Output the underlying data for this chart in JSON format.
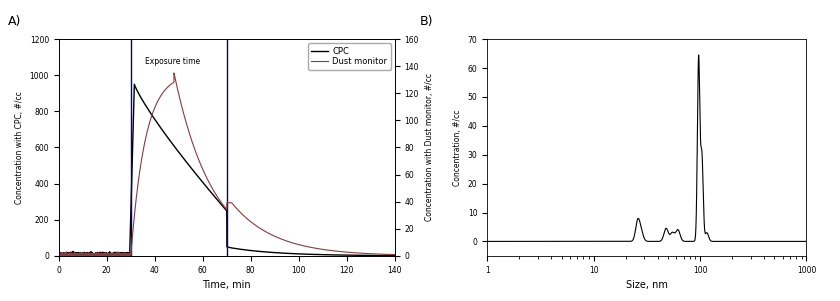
{
  "panel_A": {
    "title": "A)",
    "xlabel": "Time, min",
    "ylabel_left": "Concentration with CPC, #/cc",
    "ylabel_right": "Concentration with Dust monitor, #/cc",
    "xlim": [
      0,
      140
    ],
    "ylim_left": [
      0,
      1200
    ],
    "ylim_right": [
      0,
      160
    ],
    "yticks_left": [
      0,
      200,
      400,
      600,
      800,
      1000,
      1200
    ],
    "yticks_right": [
      0,
      20,
      40,
      60,
      80,
      100,
      120,
      140,
      160
    ],
    "xticks": [
      0,
      20,
      40,
      60,
      80,
      100,
      120,
      140
    ],
    "exposure_lines": [
      30,
      70
    ],
    "exposure_label": "Exposure time",
    "cpc_color": "#000000",
    "dust_color": "#8B3A3A",
    "vline_color": "#00008B",
    "legend_cpc": "CPC",
    "legend_dust": "Dust monitor"
  },
  "panel_B": {
    "title": "B)",
    "xlabel": "Size, nm",
    "ylabel": "Concentration, #/cc",
    "xlim": [
      1,
      1000
    ],
    "ylim": [
      -5,
      70
    ],
    "yticks": [
      0,
      10,
      20,
      30,
      40,
      50,
      60,
      70
    ],
    "line_color": "#000000"
  }
}
